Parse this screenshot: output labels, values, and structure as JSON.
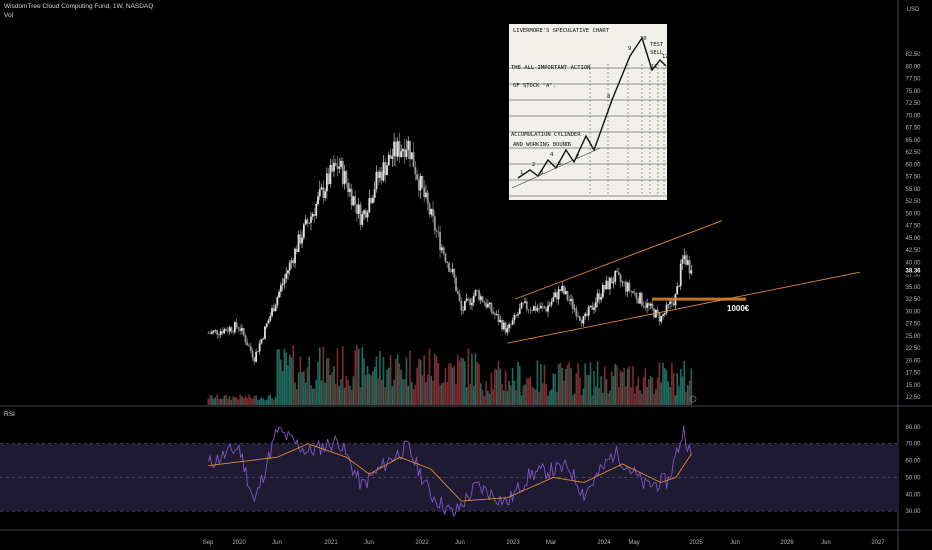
{
  "header": {
    "title": "WisdomTree Cloud Computing Fund, 1W, NASDAQ",
    "volume_label": "Vol"
  },
  "rsi_label": "RSI",
  "annotation": {
    "text": "1000€"
  },
  "inset": {
    "lines": [
      "LIVERMORE'S SPECULATIVE CHART",
      "THE ALL-IMPORTANT ACTION",
      "OF STOCK \"A\".",
      "ACCUMULATION CYLINDER",
      "AND WORKING BOUND"
    ],
    "wave_labels": [
      "1",
      "2",
      "3",
      "4",
      "5",
      "6",
      "7",
      "8",
      "9",
      "10",
      "11",
      "12"
    ],
    "test_label": "TEST",
    "sell_label": "SELL"
  },
  "colors": {
    "up": "#e0e0e0",
    "down": "#9a9a9a",
    "vol_up": "#1f6b5c",
    "vol_down": "#7a2d33",
    "channel": "#e08a2e",
    "rsi_line": "#7e57c2",
    "rsi_ma": "#e08a2e",
    "rsi_band": "#1e1a33"
  },
  "chart_data": [
    {
      "type": "candlestick",
      "title": "WisdomTree Cloud Computing Fund, 1W, NASDAQ",
      "currency": "USD",
      "ylim": [
        10.9,
        92.5
      ],
      "y_ticks": [
        12.5,
        15.0,
        17.5,
        20.0,
        22.5,
        25.0,
        27.5,
        30.0,
        32.5,
        35.0,
        37.5,
        40.0,
        42.5,
        45.0,
        47.5,
        50.0,
        52.5,
        55.0,
        57.5,
        60.0,
        62.5,
        65.0,
        67.5,
        70.0,
        72.5,
        75.0,
        77.5,
        80.0,
        82.5
      ],
      "x_ticks": [
        "Sep",
        "2020",
        "Jun",
        "2021",
        "Jun",
        "2022",
        "Jun",
        "2023",
        "Mar",
        "2024",
        "May",
        "2025",
        "Jun",
        "2026",
        "Jun",
        "2027"
      ],
      "last_price": 38.36,
      "key_points": [
        {
          "date": "2019-09",
          "close": 25.5
        },
        {
          "date": "2020-01",
          "close": 27.0
        },
        {
          "date": "2020-03",
          "close": 20.5
        },
        {
          "date": "2020-06",
          "close": 33.0
        },
        {
          "date": "2020-09",
          "close": 45.0
        },
        {
          "date": "2021-01",
          "close": 58.0
        },
        {
          "date": "2021-02",
          "close": 60.0
        },
        {
          "date": "2021-05",
          "close": 49.0
        },
        {
          "date": "2021-07",
          "close": 57.0
        },
        {
          "date": "2021-09",
          "close": 62.0
        },
        {
          "date": "2021-11",
          "close": 64.5
        },
        {
          "date": "2022-01",
          "close": 54.0
        },
        {
          "date": "2022-03",
          "close": 45.0
        },
        {
          "date": "2022-05",
          "close": 37.0
        },
        {
          "date": "2022-06",
          "close": 30.0
        },
        {
          "date": "2022-08",
          "close": 34.0
        },
        {
          "date": "2022-12",
          "close": 26.0
        },
        {
          "date": "2023-02",
          "close": 31.0
        },
        {
          "date": "2023-05",
          "close": 30.5
        },
        {
          "date": "2023-07",
          "close": 34.5
        },
        {
          "date": "2023-10",
          "close": 28.0
        },
        {
          "date": "2023-12",
          "close": 33.5
        },
        {
          "date": "2024-02",
          "close": 37.0
        },
        {
          "date": "2024-05",
          "close": 33.0
        },
        {
          "date": "2024-08",
          "close": 28.5
        },
        {
          "date": "2024-10",
          "close": 33.0
        },
        {
          "date": "2024-11",
          "close": 41.5
        },
        {
          "date": "2024-12",
          "close": 38.36
        }
      ],
      "horizontal_level": 32.5,
      "channel": {
        "upper": [
          {
            "date": "2023-01",
            "value": 32.5
          },
          {
            "date": "2025-04",
            "value": 48.5
          }
        ],
        "lower": [
          {
            "date": "2022-12",
            "value": 23.5
          },
          {
            "date": "2026-10",
            "value": 38.0
          }
        ]
      }
    },
    {
      "type": "line",
      "title": "RSI",
      "ylim": [
        20,
        90
      ],
      "y_ticks": [
        30.0,
        40.0,
        50.0,
        60.0,
        70.0,
        80.0
      ],
      "band": [
        30,
        70
      ],
      "midline": 50,
      "series": [
        {
          "values": [
            {
              "date": "2019-09",
              "value": 58
            },
            {
              "date": "2020-01",
              "value": 68
            },
            {
              "date": "2020-03",
              "value": 35
            },
            {
              "date": "2020-06",
              "value": 78
            },
            {
              "date": "2020-10",
              "value": 65
            },
            {
              "date": "2021-02",
              "value": 72
            },
            {
              "date": "2021-05",
              "value": 45
            },
            {
              "date": "2021-09",
              "value": 62
            },
            {
              "date": "2021-11",
              "value": 68
            },
            {
              "date": "2022-02",
              "value": 40
            },
            {
              "date": "2022-05",
              "value": 28
            },
            {
              "date": "2022-08",
              "value": 45
            },
            {
              "date": "2022-12",
              "value": 35
            },
            {
              "date": "2023-03",
              "value": 52
            },
            {
              "date": "2023-08",
              "value": 56
            },
            {
              "date": "2023-10",
              "value": 40
            },
            {
              "date": "2024-02",
              "value": 65
            },
            {
              "date": "2024-06",
              "value": 45
            },
            {
              "date": "2024-09",
              "value": 48
            },
            {
              "date": "2024-11",
              "value": 78
            },
            {
              "date": "2024-12",
              "value": 63
            }
          ]
        },
        {
          "values": [
            {
              "date": "2019-09",
              "value": 57
            },
            {
              "date": "2020-06",
              "value": 62
            },
            {
              "date": "2020-10",
              "value": 70
            },
            {
              "date": "2021-03",
              "value": 62
            },
            {
              "date": "2021-06",
              "value": 52
            },
            {
              "date": "2021-10",
              "value": 62
            },
            {
              "date": "2022-02",
              "value": 55
            },
            {
              "date": "2022-06",
              "value": 36
            },
            {
              "date": "2022-12",
              "value": 38
            },
            {
              "date": "2023-06",
              "value": 50
            },
            {
              "date": "2023-10",
              "value": 47
            },
            {
              "date": "2024-03",
              "value": 58
            },
            {
              "date": "2024-08",
              "value": 47
            },
            {
              "date": "2024-10",
              "value": 50
            },
            {
              "date": "2024-12",
              "value": 64
            }
          ]
        }
      ]
    }
  ]
}
